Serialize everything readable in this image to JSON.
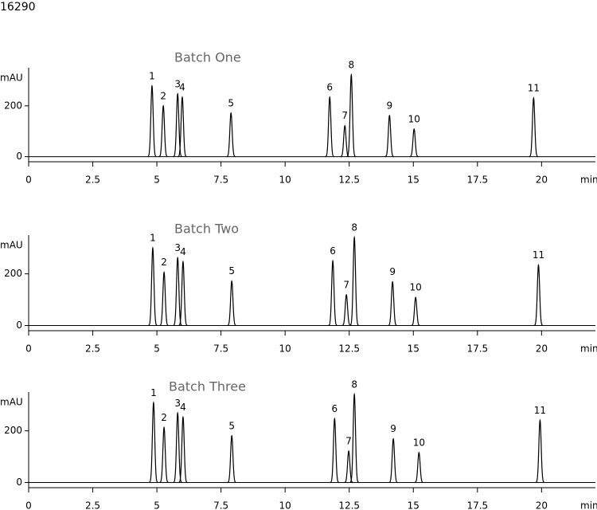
{
  "header": "16290",
  "chart_data": [
    {
      "type": "chromatogram",
      "title": "Batch One",
      "y_label": "mAU",
      "x_label": "min",
      "color": "#000000",
      "peak_labels": [
        "1",
        "2",
        "3",
        "4",
        "5",
        "6",
        "7",
        "8",
        "9",
        "10",
        "11"
      ],
      "x": [
        4.81,
        5.25,
        5.81,
        5.99,
        7.89,
        11.74,
        12.33,
        12.58,
        14.07,
        15.03,
        19.69
      ],
      "values": [
        278,
        200,
        247,
        234,
        172,
        234,
        122,
        322,
        162,
        109,
        231
      ],
      "xlim": [
        0,
        22.1
      ],
      "xticks": [
        0,
        2.5,
        5,
        7.5,
        10,
        12.5,
        15,
        17.5,
        20
      ],
      "ylim": [
        -20,
        350
      ],
      "yticks": [
        0,
        200
      ]
    },
    {
      "type": "chromatogram",
      "title": "Batch Two",
      "y_label": "mAU",
      "x_label": "min",
      "color": "#000000",
      "peak_labels": [
        "1",
        "2",
        "3",
        "4",
        "5",
        "6",
        "7",
        "8",
        "9",
        "10",
        "11"
      ],
      "x": [
        4.84,
        5.28,
        5.81,
        6.02,
        7.92,
        11.86,
        12.39,
        12.7,
        14.19,
        15.09,
        19.88
      ],
      "values": [
        300,
        206,
        262,
        247,
        172,
        250,
        119,
        341,
        169,
        109,
        234
      ],
      "xlim": [
        0,
        22.1
      ],
      "xticks": [
        0,
        2.5,
        5,
        7.5,
        10,
        12.5,
        15,
        17.5,
        20
      ],
      "ylim": [
        -20,
        350
      ],
      "yticks": [
        0,
        200
      ]
    },
    {
      "type": "chromatogram",
      "title": "Batch Three",
      "y_label": "mAU",
      "x_label": "min",
      "color": "#000000",
      "peak_labels": [
        "1",
        "2",
        "3",
        "4",
        "5",
        "6",
        "7",
        "8",
        "9",
        "10",
        "11"
      ],
      "x": [
        4.87,
        5.28,
        5.81,
        6.02,
        7.92,
        11.93,
        12.48,
        12.7,
        14.22,
        15.22,
        19.94
      ],
      "values": [
        309,
        213,
        269,
        253,
        181,
        247,
        122,
        341,
        169,
        116,
        241
      ],
      "xlim": [
        0,
        22.1
      ],
      "xticks": [
        0,
        2.5,
        5,
        7.5,
        10,
        12.5,
        15,
        17.5,
        20
      ],
      "ylim": [
        -20,
        350
      ],
      "yticks": [
        0,
        200
      ]
    }
  ]
}
